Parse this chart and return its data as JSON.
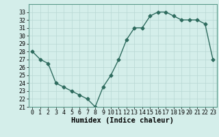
{
  "x": [
    0,
    1,
    2,
    3,
    4,
    5,
    6,
    7,
    8,
    9,
    10,
    11,
    12,
    13,
    14,
    15,
    16,
    17,
    18,
    19,
    20,
    21,
    22,
    23
  ],
  "y": [
    28,
    27,
    26.5,
    24,
    23.5,
    23,
    22.5,
    22,
    21,
    23.5,
    25,
    27,
    29.5,
    31,
    31,
    32.5,
    33,
    33,
    32.5,
    32,
    32,
    32,
    31.5,
    27
  ],
  "line_color": "#2e6b5e",
  "marker": "D",
  "marker_size": 2.5,
  "bg_color": "#d4eeea",
  "grid_color": "#b8d8d4",
  "xlabel": "Humidex (Indice chaleur)",
  "xlabel_fontsize": 7.5,
  "tick_fontsize": 6,
  "ylim": [
    21,
    34
  ],
  "yticks": [
    21,
    22,
    23,
    24,
    25,
    26,
    27,
    28,
    29,
    30,
    31,
    32,
    33
  ],
  "xticks": [
    0,
    1,
    2,
    3,
    4,
    5,
    6,
    7,
    8,
    9,
    10,
    11,
    12,
    13,
    14,
    15,
    16,
    17,
    18,
    19,
    20,
    21,
    22,
    23
  ],
  "line_width": 1.0,
  "xlim": [
    -0.5,
    23.5
  ]
}
